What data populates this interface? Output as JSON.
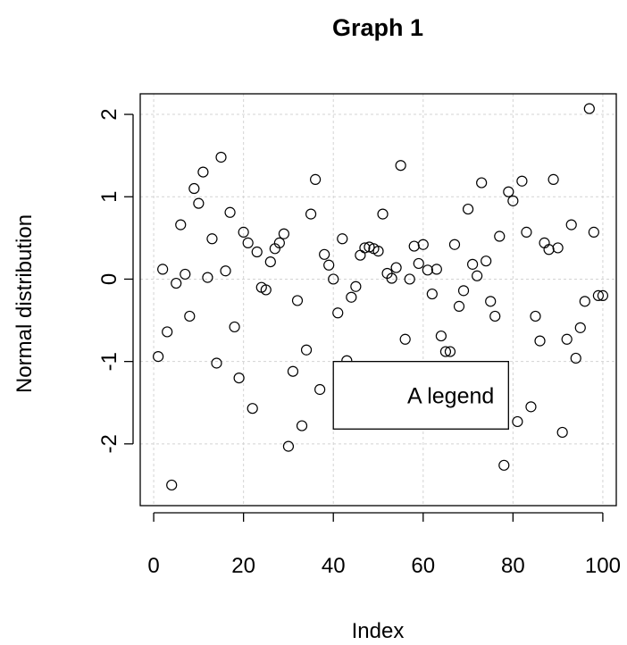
{
  "chart_data": {
    "type": "scatter",
    "title": "Graph 1",
    "xlabel": "Index",
    "ylabel": "Normal distribution",
    "xlim": [
      -3,
      103
    ],
    "ylim": [
      -2.75,
      2.25
    ],
    "x_ticks": [
      0,
      20,
      40,
      60,
      80,
      100
    ],
    "y_ticks": [
      -2,
      -1,
      0,
      1,
      2
    ],
    "x_tick_labels": [
      "0",
      "20",
      "40",
      "60",
      "80",
      "100"
    ],
    "y_tick_labels": [
      "-2",
      "-1",
      "0",
      "1",
      "2"
    ],
    "grid": true,
    "marker": "open-circle",
    "legend": {
      "text": "A legend",
      "x": [
        40,
        79
      ],
      "y": [
        -1.82,
        -1.0
      ]
    },
    "x": [
      1,
      2,
      3,
      4,
      5,
      6,
      7,
      8,
      9,
      10,
      11,
      12,
      13,
      14,
      15,
      16,
      17,
      18,
      19,
      20,
      21,
      22,
      23,
      24,
      25,
      26,
      27,
      28,
      29,
      30,
      31,
      32,
      33,
      34,
      35,
      36,
      37,
      38,
      39,
      40,
      41,
      42,
      43,
      44,
      45,
      46,
      47,
      48,
      49,
      50,
      51,
      52,
      53,
      54,
      55,
      56,
      57,
      58,
      59,
      60,
      61,
      62,
      63,
      64,
      65,
      66,
      67,
      68,
      69,
      70,
      71,
      72,
      73,
      74,
      75,
      76,
      77,
      78,
      79,
      80,
      81,
      82,
      83,
      84,
      85,
      86,
      87,
      88,
      89,
      90,
      91,
      92,
      93,
      94,
      95,
      96,
      97,
      98,
      99,
      100
    ],
    "y": [
      -0.94,
      0.12,
      -0.64,
      -2.5,
      -0.05,
      0.66,
      0.06,
      -0.45,
      1.1,
      0.92,
      1.3,
      0.02,
      0.49,
      -1.02,
      1.48,
      0.1,
      0.81,
      -0.58,
      -1.2,
      0.57,
      0.44,
      -1.57,
      0.33,
      -0.1,
      -0.13,
      0.21,
      0.37,
      0.44,
      0.55,
      -2.03,
      -1.12,
      -0.26,
      -1.78,
      -0.86,
      0.79,
      1.21,
      -1.34,
      0.3,
      0.17,
      0.0,
      -0.41,
      0.49,
      -0.99,
      -0.22,
      -0.09,
      0.29,
      0.38,
      0.39,
      0.37,
      0.34,
      0.79,
      0.07,
      0.01,
      0.14,
      1.38,
      -0.73,
      0.0,
      0.4,
      0.19,
      0.42,
      0.11,
      -0.18,
      0.12,
      -0.69,
      -0.88,
      -0.88,
      0.42,
      -0.33,
      -0.14,
      0.85,
      0.18,
      0.04,
      1.17,
      0.22,
      -0.27,
      -0.45,
      0.52,
      -2.26,
      1.06,
      0.95,
      -1.73,
      1.19,
      0.57,
      -1.55,
      -0.45,
      -0.75,
      0.44,
      0.36,
      1.21,
      0.38,
      -1.86,
      -0.73,
      0.66,
      -0.96,
      -0.59,
      -0.27,
      2.07,
      0.57,
      -0.2,
      -0.2
    ]
  }
}
